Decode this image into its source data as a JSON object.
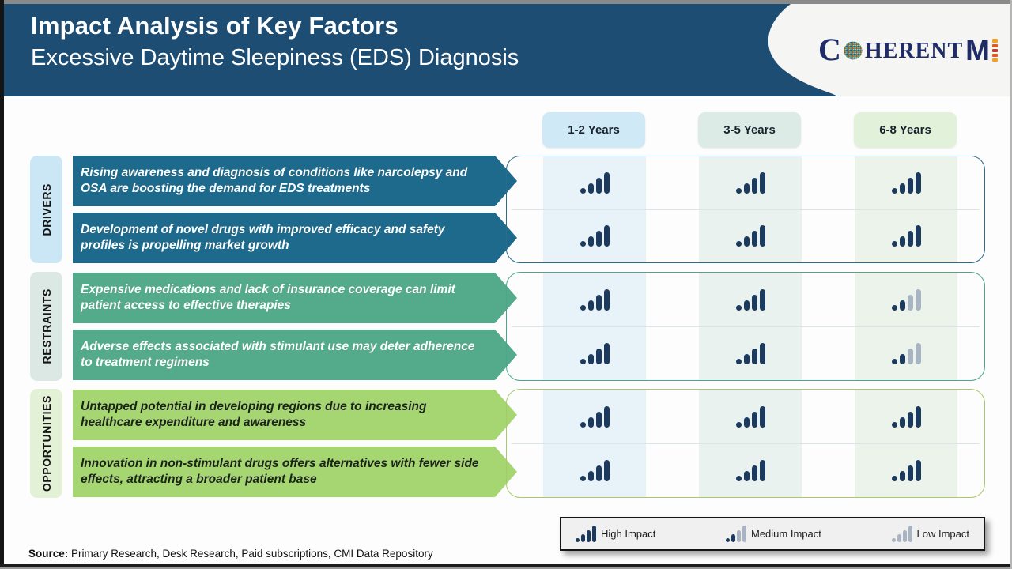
{
  "header": {
    "title": "Impact Analysis of Key Factors",
    "subtitle": "Excessive Daytime Sleepiness (EDS) Diagnosis"
  },
  "logo": {
    "c": "C",
    "herent": "HERENT",
    "m": "M"
  },
  "columns": [
    "1-2 Years",
    "3-5 Years",
    "6-8 Years"
  ],
  "sections": [
    {
      "label": "DRIVERS",
      "rows": [
        {
          "text": "Rising awareness and diagnosis of conditions like narcolepsy and OSA are boosting the demand for EDS treatments",
          "impacts": [
            "high",
            "high",
            "high"
          ]
        },
        {
          "text": "Development of novel drugs with improved efficacy and safety profiles is propelling market growth",
          "impacts": [
            "high",
            "high",
            "high"
          ]
        }
      ]
    },
    {
      "label": "RESTRAINTS",
      "rows": [
        {
          "text": "Expensive medications and lack of insurance coverage can limit patient access to effective therapies",
          "impacts": [
            "high",
            "high",
            "medium"
          ]
        },
        {
          "text": "Adverse effects associated with stimulant use may deter adherence to treatment regimens",
          "impacts": [
            "high",
            "high",
            "medium"
          ]
        }
      ]
    },
    {
      "label": "OPPORTUNITIES",
      "rows": [
        {
          "text": "Untapped potential in developing regions due to increasing healthcare expenditure and awareness",
          "impacts": [
            "high",
            "high",
            "high"
          ]
        },
        {
          "text": "Innovation in non-stimulant drugs offers alternatives with fewer side effects, attracting a broader patient base",
          "impacts": [
            "high",
            "high",
            "high"
          ]
        }
      ]
    }
  ],
  "legend": [
    {
      "label": "High Impact",
      "level": "high"
    },
    {
      "label": "Medium Impact",
      "level": "medium"
    },
    {
      "label": "Low Impact",
      "level": "low"
    }
  ],
  "source": {
    "label": "Source:",
    "text": "Primary Research, Desk Research, Paid subscriptions, CMI Data Repository"
  },
  "colors": {
    "header": "#1e4d74",
    "driver": "#1d6a8d",
    "restraint": "#54ab8c",
    "opportunity": "#a6d671",
    "bar_high": "#1c3a5e",
    "bar_low": "#a9b4c3"
  }
}
